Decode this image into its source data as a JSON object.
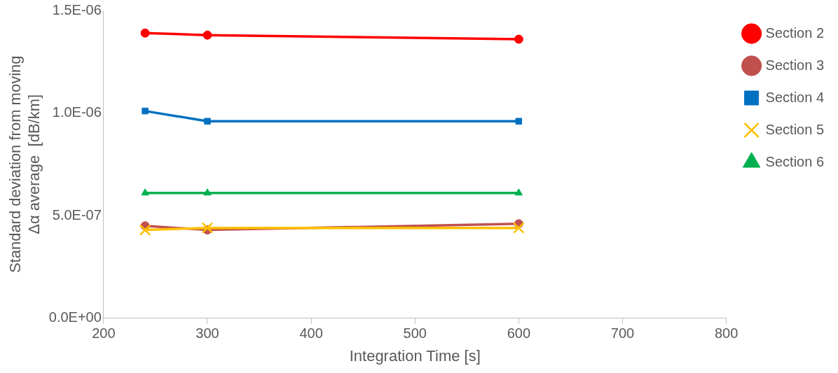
{
  "chart_data": {
    "type": "line",
    "xlabel": "Integration Time [s]",
    "ylabel": "Standard deviation from moving\nΔα average  [dB/km]",
    "xlim": [
      200,
      800
    ],
    "xticks": [
      200,
      300,
      400,
      500,
      600,
      700,
      800
    ],
    "ylim": [
      0,
      1.5e-06
    ],
    "yticks": [
      {
        "value": 0,
        "label": "0.0E+00"
      },
      {
        "value": 5e-07,
        "label": "5.0E-07"
      },
      {
        "value": 1e-06,
        "label": "1.0E-06"
      },
      {
        "value": 1.5e-06,
        "label": "1.5E-06"
      }
    ],
    "grid": false,
    "legend": "right",
    "line_style": "solid",
    "series": [
      {
        "name": "Section 2",
        "color": "#ff0000",
        "marker": "circle",
        "x": [
          240,
          300,
          600
        ],
        "values": [
          1.39e-06,
          1.38e-06,
          1.36e-06
        ]
      },
      {
        "name": "Section 3",
        "color": "#c0504d",
        "marker": "circle",
        "x": [
          240,
          300,
          600
        ],
        "values": [
          4.5e-07,
          4.3e-07,
          4.6e-07
        ]
      },
      {
        "name": "Section 4",
        "color": "#0070c0",
        "marker": "square",
        "x": [
          240,
          300,
          600
        ],
        "values": [
          1.01e-06,
          9.6e-07,
          9.6e-07
        ]
      },
      {
        "name": "Section 5",
        "color": "#ffc000",
        "marker": "cross",
        "x": [
          240,
          300,
          600
        ],
        "values": [
          4.3e-07,
          4.4e-07,
          4.4e-07
        ]
      },
      {
        "name": "Section 6",
        "color": "#00b050",
        "marker": "triangle",
        "x": [
          240,
          300,
          600
        ],
        "values": [
          6.1e-07,
          6.1e-07,
          6.1e-07
        ]
      }
    ]
  }
}
